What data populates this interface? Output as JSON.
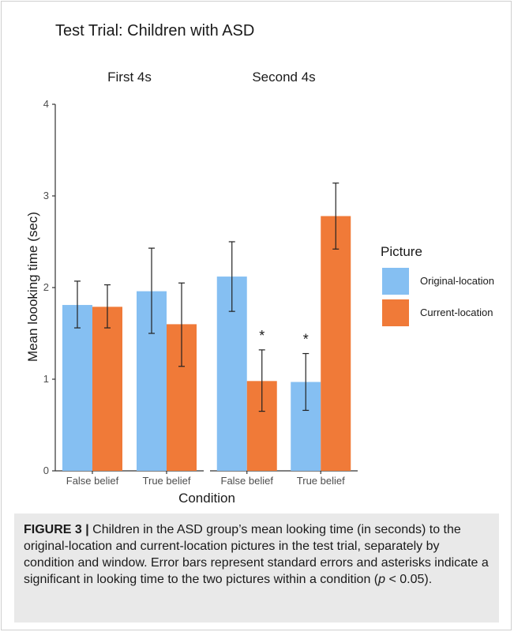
{
  "chart_data": {
    "type": "bar",
    "title": "Test Trial: Children with ASD",
    "panels": [
      {
        "label": "First 4s",
        "categories": [
          "False belief",
          "True belief"
        ],
        "series": [
          {
            "name": "Original-location",
            "values": [
              1.81,
              1.96
            ],
            "error_low": [
              1.56,
              1.5
            ],
            "error_high": [
              2.07,
              2.43
            ]
          },
          {
            "name": "Current-location",
            "values": [
              1.79,
              1.6
            ],
            "error_low": [
              1.56,
              1.14
            ],
            "error_high": [
              2.03,
              2.05
            ]
          }
        ],
        "significance": [
          "",
          ""
        ]
      },
      {
        "label": "Second 4s",
        "categories": [
          "False belief",
          "True belief"
        ],
        "series": [
          {
            "name": "Original-location",
            "values": [
              2.12,
              0.97
            ],
            "error_low": [
              1.74,
              0.66
            ],
            "error_high": [
              2.5,
              1.28
            ]
          },
          {
            "name": "Current-location",
            "values": [
              0.98,
              2.78
            ],
            "error_low": [
              0.65,
              2.42
            ],
            "error_high": [
              1.32,
              3.14
            ]
          }
        ],
        "significance": [
          "*",
          "*"
        ]
      }
    ],
    "xlabel": "Condition",
    "ylabel": "Mean loooking time (sec)",
    "yticks": [
      "0",
      "1",
      "2",
      "3",
      "4"
    ],
    "ylim": [
      0,
      4
    ],
    "legend": {
      "title": "Picture",
      "position": "right",
      "entries": [
        "Original-location",
        "Current-location"
      ]
    },
    "colors": {
      "Original-location": "#85bff2",
      "Current-location": "#f07a38"
    },
    "grid": false
  },
  "caption": {
    "label": "FIGURE 3 |",
    "text": " Children in the ASD group’s mean looking time (in seconds) to the original-location and current-location pictures in the test trial, separately by condition and window. Error bars represent standard errors and asterisks indicate a significant in looking time to the two pictures within a condition (",
    "p_symbol": "p",
    "p_tail": " < 0.05)."
  }
}
